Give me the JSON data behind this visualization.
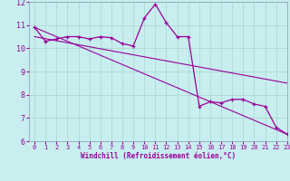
{
  "xlabel": "Windchill (Refroidissement éolien,°C)",
  "bg_color": "#c8eef0",
  "grid_color": "#a8d8c8",
  "line_color": "#990099",
  "hours": [
    0,
    1,
    2,
    3,
    4,
    5,
    6,
    7,
    8,
    9,
    10,
    11,
    12,
    13,
    14,
    15,
    16,
    17,
    18,
    19,
    20,
    21,
    22,
    23
  ],
  "windchill": [
    10.9,
    10.3,
    10.4,
    10.5,
    10.5,
    10.4,
    10.5,
    10.45,
    10.2,
    10.1,
    11.3,
    11.9,
    11.1,
    10.5,
    10.5,
    7.5,
    7.7,
    7.65,
    7.8,
    7.8,
    7.6,
    7.5,
    6.6,
    6.3
  ],
  "trend1_x": [
    0,
    23
  ],
  "trend1_y": [
    10.9,
    6.3
  ],
  "trend2_x": [
    0,
    23
  ],
  "trend2_y": [
    10.5,
    8.5
  ],
  "ylim": [
    6,
    12
  ],
  "xlim": [
    -0.5,
    23
  ]
}
